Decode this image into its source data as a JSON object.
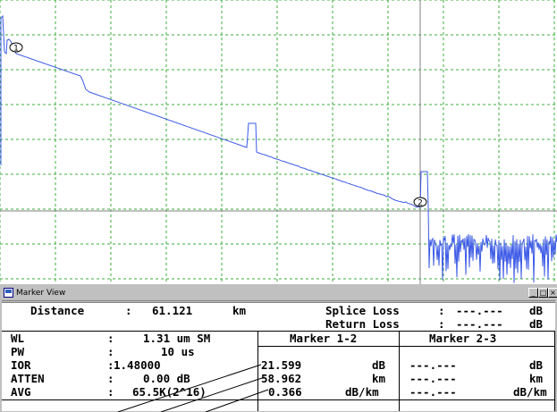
{
  "window": {
    "title": "Marker View",
    "minimize_glyph": "_",
    "restore_glyph": "□",
    "close_glyph": "×"
  },
  "trace": {
    "markers": [
      "1",
      "2"
    ],
    "colors": {
      "trace": "#3c5ae6",
      "grid": "#3cae3c",
      "cursor": "#808080"
    }
  },
  "summary": {
    "distance_label": "Distance",
    "sep": ":",
    "distance_value": "61.121",
    "distance_unit": "km",
    "splice_loss_label": "Splice Loss",
    "splice_loss_value": "---.---",
    "splice_loss_unit": "dB",
    "return_loss_label": "Return Loss",
    "return_loss_value": "---.---",
    "return_loss_unit": "dB"
  },
  "params": [
    {
      "label": "WL",
      "sep": ":",
      "value": "1.31 um SM"
    },
    {
      "label": "PW",
      "sep": ":",
      "value": "10 us"
    },
    {
      "label": "IOR",
      "sep": ":",
      "value": "1.48000"
    },
    {
      "label": "ATTEN",
      "sep": ":",
      "value": "0.00 dB"
    },
    {
      "label": "AVG",
      "sep": ":",
      "value": "65.5K(2^16)"
    }
  ],
  "marker_12": {
    "header": "Marker 1-2",
    "rows": [
      {
        "value": "21.599",
        "unit": "dB"
      },
      {
        "value": "58.962",
        "unit": "km"
      },
      {
        "value": "0.366",
        "unit": "dB/km"
      }
    ]
  },
  "marker_23": {
    "header": "Marker 2-3",
    "rows": [
      {
        "value": "---.---",
        "unit": "dB"
      },
      {
        "value": "---.---",
        "unit": "km"
      },
      {
        "value": "---.---",
        "unit": "dB/km"
      }
    ]
  }
}
